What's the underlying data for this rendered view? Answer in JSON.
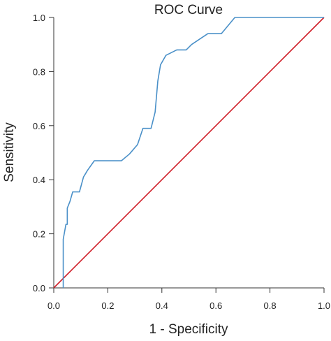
{
  "chart_data": {
    "type": "line",
    "title": "ROC Curve",
    "xlabel": "1 - Specificity",
    "ylabel": "Sensitivity",
    "xlim": [
      0,
      1
    ],
    "ylim": [
      0,
      1
    ],
    "x_ticks": [
      "0.0",
      "0.2",
      "0.4",
      "0.6",
      "0.8",
      "1.0"
    ],
    "y_ticks": [
      "0.0",
      "0.2",
      "0.4",
      "0.6",
      "0.8",
      "1.0"
    ],
    "grid": false,
    "legend": "none",
    "series": [
      {
        "color": "#4a90c8",
        "x": [
          0.035,
          0.035,
          0.035,
          0.045,
          0.05,
          0.05,
          0.06,
          0.07,
          0.095,
          0.11,
          0.125,
          0.15,
          0.25,
          0.28,
          0.31,
          0.33,
          0.36,
          0.375,
          0.385,
          0.395,
          0.415,
          0.455,
          0.49,
          0.51,
          0.57,
          0.62,
          0.645,
          0.67,
          1.0
        ],
        "y": [
          0.0,
          0.175,
          0.18,
          0.235,
          0.235,
          0.295,
          0.32,
          0.355,
          0.355,
          0.41,
          0.435,
          0.47,
          0.47,
          0.495,
          0.53,
          0.59,
          0.59,
          0.65,
          0.765,
          0.825,
          0.86,
          0.88,
          0.88,
          0.9,
          0.94,
          0.94,
          0.97,
          1.0,
          1.0
        ]
      },
      {
        "color": "#d0202a",
        "x": [
          0,
          1
        ],
        "y": [
          0,
          1
        ]
      }
    ]
  }
}
